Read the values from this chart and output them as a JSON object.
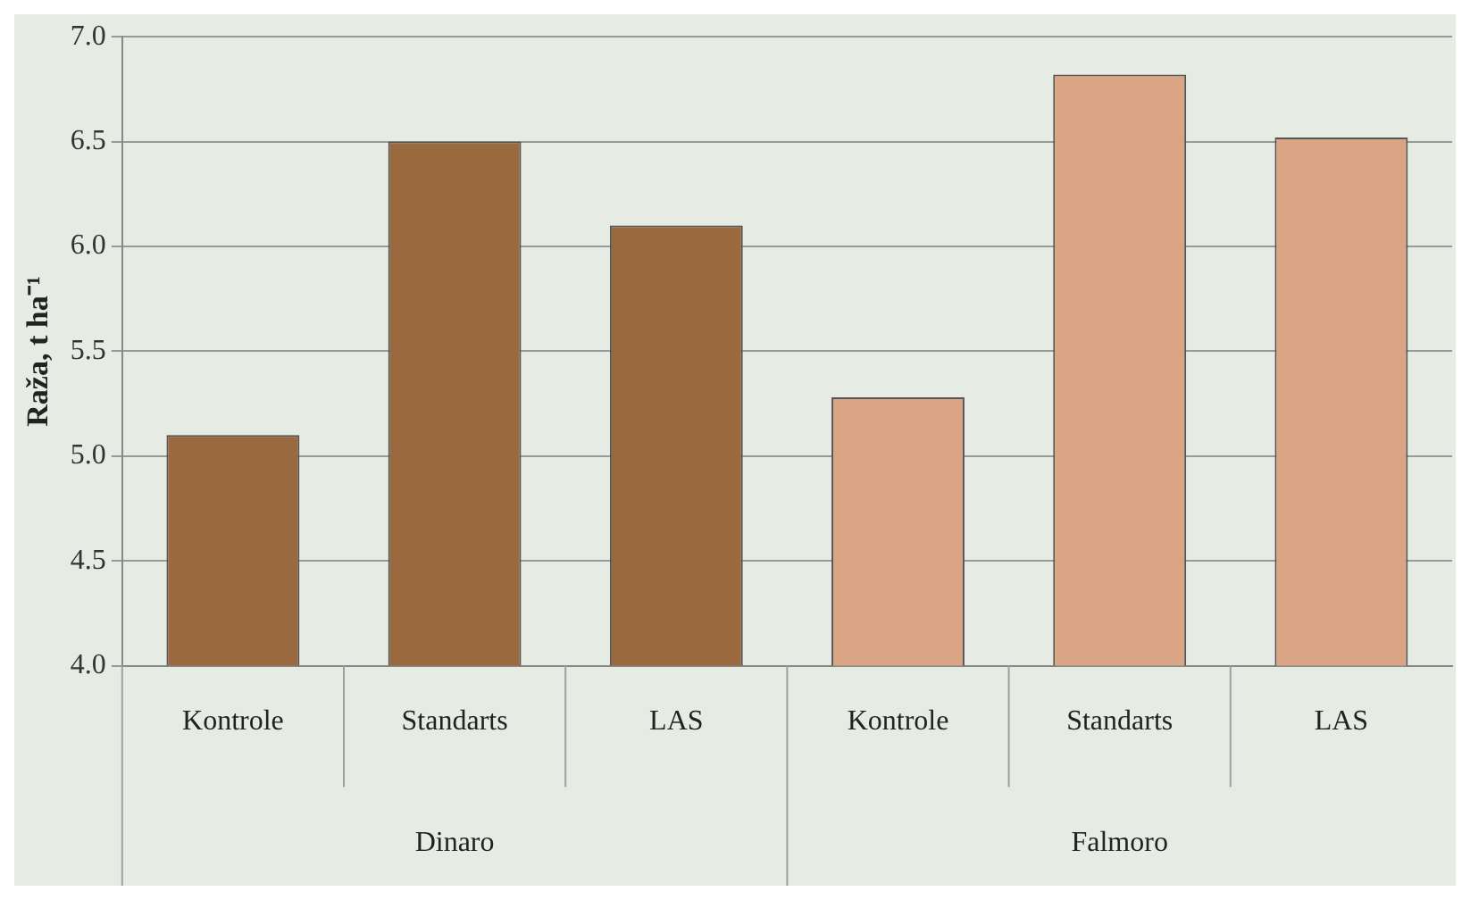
{
  "chart_data": {
    "type": "bar",
    "ylabel": "Raža, t ha⁻¹",
    "categories": [
      "Kontrole",
      "Standarts",
      "LAS",
      "Kontrole",
      "Standarts",
      "LAS"
    ],
    "values": [
      5.1,
      6.5,
      6.1,
      5.28,
      6.82,
      6.52
    ],
    "colors": [
      "#9a6a3e",
      "#9a6a3e",
      "#9a6a3e",
      "#d9a585",
      "#d9a585",
      "#d9a585"
    ],
    "ylim": [
      4,
      7
    ],
    "yticks": [
      {
        "value": 4,
        "label": "4.0"
      },
      {
        "value": 4.5,
        "label": "4.5"
      },
      {
        "value": 5,
        "label": "5.0"
      },
      {
        "value": 5.5,
        "label": "5.5"
      },
      {
        "value": 6,
        "label": "6.0"
      },
      {
        "value": 6.5,
        "label": "6.5"
      },
      {
        "value": 7,
        "label": "7.0"
      }
    ],
    "grid": "y",
    "annotations": [
      "Dinaro",
      "Falmoro"
    ]
  }
}
